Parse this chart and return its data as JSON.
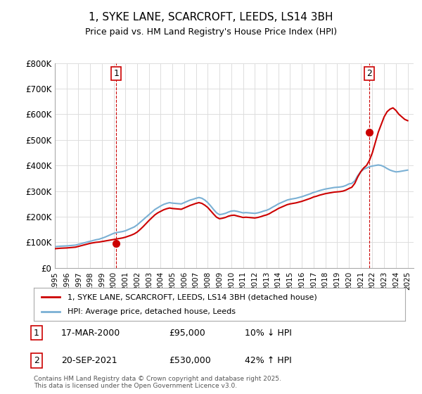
{
  "title": "1, SYKE LANE, SCARCROFT, LEEDS, LS14 3BH",
  "subtitle": "Price paid vs. HM Land Registry's House Price Index (HPI)",
  "ylabel": "",
  "xlabel": "",
  "ylim": [
    0,
    800000
  ],
  "yticks": [
    0,
    100000,
    200000,
    300000,
    400000,
    500000,
    600000,
    700000,
    800000
  ],
  "ytick_labels": [
    "£0",
    "£100K",
    "£200K",
    "£300K",
    "£400K",
    "£500K",
    "£600K",
    "£700K",
    "£800K"
  ],
  "xlim_start": 1995.0,
  "xlim_end": 2025.5,
  "legend_property": "1, SYKE LANE, SCARCROFT, LEEDS, LS14 3BH (detached house)",
  "legend_hpi": "HPI: Average price, detached house, Leeds",
  "sale1_year": 2000.21,
  "sale1_price": 95000,
  "sale1_label": "1",
  "sale1_date": "17-MAR-2000",
  "sale1_amount": "£95,000",
  "sale1_hpi": "10% ↓ HPI",
  "sale2_year": 2021.72,
  "sale2_price": 530000,
  "sale2_label": "2",
  "sale2_date": "20-SEP-2021",
  "sale2_amount": "£530,000",
  "sale2_hpi": "42% ↑ HPI",
  "line_color_property": "#cc0000",
  "line_color_hpi": "#7ab0d4",
  "footer": "Contains HM Land Registry data © Crown copyright and database right 2025.\nThis data is licensed under the Open Government Licence v3.0.",
  "background_color": "#ffffff",
  "grid_color": "#dddddd",
  "hpi_years": [
    1995.0,
    1995.25,
    1995.5,
    1995.75,
    1996.0,
    1996.25,
    1996.5,
    1996.75,
    1997.0,
    1997.25,
    1997.5,
    1997.75,
    1998.0,
    1998.25,
    1998.5,
    1998.75,
    1999.0,
    1999.25,
    1999.5,
    1999.75,
    2000.0,
    2000.25,
    2000.5,
    2000.75,
    2001.0,
    2001.25,
    2001.5,
    2001.75,
    2002.0,
    2002.25,
    2002.5,
    2002.75,
    2003.0,
    2003.25,
    2003.5,
    2003.75,
    2004.0,
    2004.25,
    2004.5,
    2004.75,
    2005.0,
    2005.25,
    2005.5,
    2005.75,
    2006.0,
    2006.25,
    2006.5,
    2006.75,
    2007.0,
    2007.25,
    2007.5,
    2007.75,
    2008.0,
    2008.25,
    2008.5,
    2008.75,
    2009.0,
    2009.25,
    2009.5,
    2009.75,
    2010.0,
    2010.25,
    2010.5,
    2010.75,
    2011.0,
    2011.25,
    2011.5,
    2011.75,
    2012.0,
    2012.25,
    2012.5,
    2012.75,
    2013.0,
    2013.25,
    2013.5,
    2013.75,
    2014.0,
    2014.25,
    2014.5,
    2014.75,
    2015.0,
    2015.25,
    2015.5,
    2015.75,
    2016.0,
    2016.25,
    2016.5,
    2016.75,
    2017.0,
    2017.25,
    2017.5,
    2017.75,
    2018.0,
    2018.25,
    2018.5,
    2018.75,
    2019.0,
    2019.25,
    2019.5,
    2019.75,
    2020.0,
    2020.25,
    2020.5,
    2020.75,
    2021.0,
    2021.25,
    2021.5,
    2021.75,
    2022.0,
    2022.25,
    2022.5,
    2022.75,
    2023.0,
    2023.25,
    2023.5,
    2023.75,
    2024.0,
    2024.25,
    2024.5,
    2024.75,
    2025.0
  ],
  "hpi_values": [
    83000,
    84000,
    85000,
    85500,
    86000,
    87000,
    88000,
    89000,
    92000,
    95000,
    98000,
    101000,
    104000,
    107000,
    110000,
    112000,
    116000,
    120000,
    125000,
    130000,
    135000,
    138000,
    140000,
    142000,
    145000,
    150000,
    155000,
    160000,
    168000,
    178000,
    188000,
    198000,
    208000,
    218000,
    228000,
    235000,
    242000,
    248000,
    252000,
    255000,
    253000,
    252000,
    251000,
    250000,
    255000,
    260000,
    265000,
    268000,
    272000,
    275000,
    272000,
    265000,
    255000,
    242000,
    228000,
    215000,
    208000,
    210000,
    213000,
    218000,
    222000,
    223000,
    221000,
    218000,
    215000,
    216000,
    215000,
    214000,
    213000,
    215000,
    218000,
    222000,
    225000,
    230000,
    237000,
    243000,
    250000,
    255000,
    260000,
    265000,
    268000,
    270000,
    272000,
    275000,
    278000,
    282000,
    286000,
    290000,
    295000,
    298000,
    302000,
    305000,
    308000,
    310000,
    312000,
    314000,
    315000,
    316000,
    318000,
    322000,
    328000,
    330000,
    340000,
    360000,
    375000,
    385000,
    390000,
    395000,
    398000,
    400000,
    402000,
    400000,
    395000,
    388000,
    382000,
    378000,
    375000,
    376000,
    378000,
    380000,
    382000
  ],
  "prop_years": [
    1995.0,
    1995.25,
    1995.5,
    1995.75,
    1996.0,
    1996.25,
    1996.5,
    1996.75,
    1997.0,
    1997.25,
    1997.5,
    1997.75,
    1998.0,
    1998.25,
    1998.5,
    1998.75,
    1999.0,
    1999.25,
    1999.5,
    1999.75,
    2000.0,
    2000.25,
    2000.5,
    2000.75,
    2001.0,
    2001.25,
    2001.5,
    2001.75,
    2002.0,
    2002.25,
    2002.5,
    2002.75,
    2003.0,
    2003.25,
    2003.5,
    2003.75,
    2004.0,
    2004.25,
    2004.5,
    2004.75,
    2005.0,
    2005.25,
    2005.5,
    2005.75,
    2006.0,
    2006.25,
    2006.5,
    2006.75,
    2007.0,
    2007.25,
    2007.5,
    2007.75,
    2008.0,
    2008.25,
    2008.5,
    2008.75,
    2009.0,
    2009.25,
    2009.5,
    2009.75,
    2010.0,
    2010.25,
    2010.5,
    2010.75,
    2011.0,
    2011.25,
    2011.5,
    2011.75,
    2012.0,
    2012.25,
    2012.5,
    2012.75,
    2013.0,
    2013.25,
    2013.5,
    2013.75,
    2014.0,
    2014.25,
    2014.5,
    2014.75,
    2015.0,
    2015.25,
    2015.5,
    2015.75,
    2016.0,
    2016.25,
    2016.5,
    2016.75,
    2017.0,
    2017.25,
    2017.5,
    2017.75,
    2018.0,
    2018.25,
    2018.5,
    2018.75,
    2019.0,
    2019.25,
    2019.5,
    2019.75,
    2020.0,
    2020.25,
    2020.5,
    2020.75,
    2021.0,
    2021.25,
    2021.5,
    2021.75,
    2022.0,
    2022.25,
    2022.5,
    2022.75,
    2023.0,
    2023.25,
    2023.5,
    2023.75,
    2024.0,
    2024.25,
    2024.5,
    2024.75,
    2025.0
  ],
  "prop_values": [
    75000,
    76000,
    77000,
    77500,
    78000,
    79000,
    80000,
    81000,
    84000,
    87000,
    90000,
    93000,
    96000,
    98000,
    100000,
    101000,
    103000,
    105000,
    107000,
    109000,
    111000,
    113000,
    115000,
    117000,
    120000,
    124000,
    128000,
    133000,
    140000,
    150000,
    161000,
    173000,
    185000,
    196000,
    207000,
    215000,
    221000,
    227000,
    231000,
    234000,
    232000,
    231000,
    230000,
    229000,
    234000,
    239000,
    244000,
    248000,
    252000,
    255000,
    252000,
    245000,
    236000,
    223000,
    210000,
    198000,
    192000,
    194000,
    197000,
    202000,
    205000,
    206000,
    203000,
    200000,
    197000,
    198000,
    197000,
    196000,
    195000,
    197000,
    200000,
    204000,
    207000,
    212000,
    219000,
    225000,
    232000,
    237000,
    242000,
    247000,
    250000,
    252000,
    254000,
    257000,
    260000,
    264000,
    268000,
    272000,
    277000,
    280000,
    284000,
    287000,
    290000,
    292000,
    294000,
    296000,
    297000,
    298000,
    300000,
    304000,
    310000,
    315000,
    330000,
    355000,
    375000,
    390000,
    400000,
    420000,
    450000,
    490000,
    530000,
    560000,
    590000,
    610000,
    620000,
    625000,
    615000,
    600000,
    590000,
    580000,
    575000
  ]
}
